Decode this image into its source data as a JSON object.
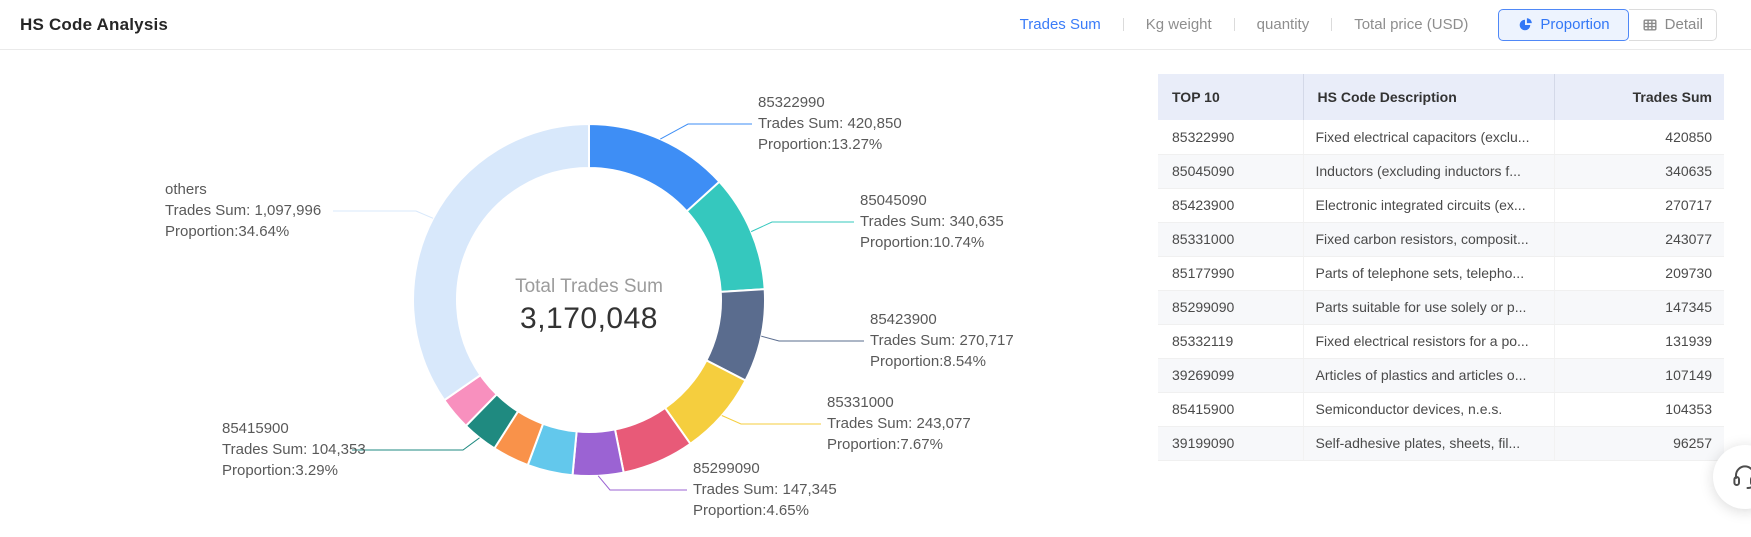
{
  "header": {
    "title": "HS Code Analysis",
    "nav_items": [
      {
        "label": "Trades Sum",
        "active": true
      },
      {
        "label": "Kg weight",
        "active": false
      },
      {
        "label": "quantity",
        "active": false
      },
      {
        "label": "Total price (USD)",
        "active": false
      }
    ],
    "view_buttons": [
      {
        "label": "Proportion",
        "icon": "pie-chart-icon",
        "active": true
      },
      {
        "label": "Detail",
        "icon": "table-icon",
        "active": false
      }
    ]
  },
  "chart_data": {
    "type": "pie",
    "subtype": "donut",
    "center_label": "Total Trades Sum",
    "center_value": "3,170,048",
    "total": 3170048,
    "label_value_prefix": "Trades Sum: ",
    "label_proportion_prefix": "Proportion:",
    "legend_position": "none",
    "slices": [
      {
        "name": "85322990",
        "value": 420850,
        "display_value": "420,850",
        "proportion": "13.27%",
        "color": "#3E8EF5",
        "labeled": true
      },
      {
        "name": "85045090",
        "value": 340635,
        "display_value": "340,635",
        "proportion": "10.74%",
        "color": "#35C8BE",
        "labeled": true
      },
      {
        "name": "85423900",
        "value": 270717,
        "display_value": "270,717",
        "proportion": "8.54%",
        "color": "#5A6C8E",
        "labeled": true
      },
      {
        "name": "85331000",
        "value": 243077,
        "display_value": "243,077",
        "proportion": "7.67%",
        "color": "#F5CE3E",
        "labeled": true
      },
      {
        "name": "85177990",
        "value": 209730,
        "color": "#E85A78",
        "labeled": false
      },
      {
        "name": "85299090",
        "value": 147345,
        "display_value": "147,345",
        "proportion": "4.65%",
        "color": "#9B63D3",
        "labeled": true
      },
      {
        "name": "85332119",
        "value": 131939,
        "color": "#63C8EC",
        "labeled": false
      },
      {
        "name": "39269099",
        "value": 107149,
        "color": "#F9924A",
        "labeled": false
      },
      {
        "name": "85415900",
        "value": 104353,
        "display_value": "104,353",
        "proportion": "3.29%",
        "color": "#1F8A80",
        "labeled": true
      },
      {
        "name": "39199090",
        "value": 96257,
        "color": "#F890BE",
        "labeled": false
      },
      {
        "name": "others",
        "value": 1097996,
        "display_value": "1,097,996",
        "proportion": "34.64%",
        "color": "#D8E8FB",
        "labeled": true
      }
    ]
  },
  "table": {
    "columns": [
      "TOP 10",
      "HS Code Description",
      "Trades Sum"
    ],
    "rows": [
      {
        "code": "85322990",
        "description": "Fixed electrical capacitors (exclu...",
        "trades_sum": "420850"
      },
      {
        "code": "85045090",
        "description": "Inductors (excluding inductors f...",
        "trades_sum": "340635"
      },
      {
        "code": "85423900",
        "description": "Electronic integrated circuits (ex...",
        "trades_sum": "270717"
      },
      {
        "code": "85331000",
        "description": "Fixed carbon resistors, composit...",
        "trades_sum": "243077"
      },
      {
        "code": "85177990",
        "description": "Parts of telephone sets, telepho...",
        "trades_sum": "209730"
      },
      {
        "code": "85299090",
        "description": "Parts suitable for use solely or p...",
        "trades_sum": "147345"
      },
      {
        "code": "85332119",
        "description": "Fixed electrical resistors for a po...",
        "trades_sum": "131939"
      },
      {
        "code": "39269099",
        "description": "Articles of plastics and articles o...",
        "trades_sum": "107149"
      },
      {
        "code": "85415900",
        "description": "Semiconductor devices, n.e.s.",
        "trades_sum": "104353"
      },
      {
        "code": "39199090",
        "description": "Self-adhesive plates, sheets, fil...",
        "trades_sum": "96257"
      }
    ]
  },
  "support": {
    "icon": "headset-icon"
  },
  "colors": {
    "accent_blue": "#3377F6",
    "table_header_bg": "#E9EDF9"
  }
}
